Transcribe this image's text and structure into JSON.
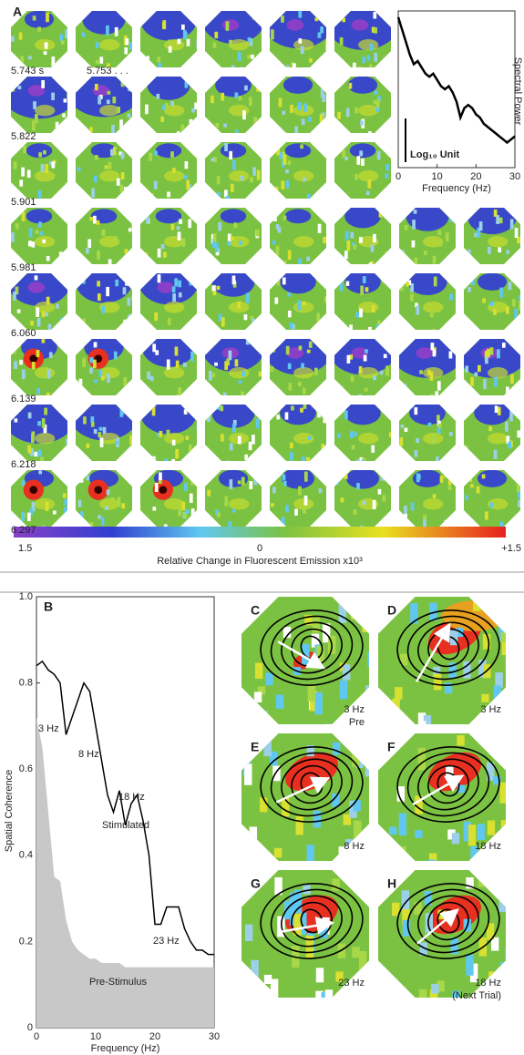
{
  "panel_a": {
    "label": "A",
    "time_labels": [
      "5.743 s",
      "5.753 . . .",
      "5.822",
      "5.901",
      "5.981",
      "6.060",
      "6.139",
      "6.218",
      "6.297"
    ]
  },
  "colorbar": {
    "min_label": "1.5",
    "mid_label": "0",
    "max_label": "+1.5",
    "title": "Relative Change in Fluorescent Emission x10³"
  },
  "chart_data": [
    {
      "type": "line",
      "x_label": "Frequency (Hz)",
      "y_label": "Spectral Power",
      "scale_bar_label": "Log₁₀ Unit",
      "x": [
        0,
        1,
        2,
        3,
        4,
        5,
        6,
        7,
        8,
        9,
        10,
        11,
        12,
        13,
        14,
        15,
        16,
        17,
        18,
        19,
        20,
        21,
        22,
        23,
        24,
        25,
        26,
        27,
        28,
        29,
        30
      ],
      "values": [
        4.8,
        4.4,
        4.0,
        3.6,
        3.3,
        3.4,
        3.2,
        3.0,
        2.9,
        3.0,
        2.8,
        2.6,
        2.5,
        2.6,
        2.4,
        2.1,
        1.6,
        1.9,
        2.0,
        1.9,
        1.7,
        1.6,
        1.4,
        1.3,
        1.2,
        1.1,
        1.0,
        0.9,
        0.8,
        0.9,
        1.0
      ],
      "color": "#000000",
      "xlim": [
        0,
        30
      ],
      "xticks": [
        0,
        10,
        20,
        30
      ],
      "ylim": [
        0,
        5
      ]
    },
    {
      "type": "line",
      "panel_label": "B",
      "x_label": "Frequency (Hz)",
      "y_label": "Spatial Coherence",
      "x": [
        0,
        1,
        2,
        3,
        4,
        5,
        6,
        7,
        8,
        9,
        10,
        11,
        12,
        13,
        14,
        15,
        16,
        17,
        18,
        19,
        20,
        21,
        22,
        23,
        24,
        25,
        26,
        27,
        28,
        29,
        30
      ],
      "series": [
        {
          "name": "Stimulated",
          "color": "#000000",
          "values": [
            0.84,
            0.85,
            0.83,
            0.82,
            0.8,
            0.68,
            0.72,
            0.76,
            0.8,
            0.78,
            0.7,
            0.62,
            0.54,
            0.5,
            0.55,
            0.47,
            0.52,
            0.54,
            0.48,
            0.4,
            0.24,
            0.24,
            0.28,
            0.28,
            0.28,
            0.23,
            0.2,
            0.18,
            0.18,
            0.17,
            0.17
          ]
        },
        {
          "name": "Pre-Stimulus",
          "color": "#c8c8c8",
          "fill": true,
          "values": [
            0.72,
            0.65,
            0.5,
            0.35,
            0.34,
            0.25,
            0.2,
            0.18,
            0.17,
            0.16,
            0.16,
            0.15,
            0.15,
            0.15,
            0.15,
            0.14,
            0.14,
            0.14,
            0.14,
            0.14,
            0.14,
            0.14,
            0.14,
            0.14,
            0.14,
            0.14,
            0.14,
            0.14,
            0.14,
            0.14,
            0.14
          ]
        }
      ],
      "annotations": [
        "3 Hz",
        "8 Hz",
        "18 Hz",
        "23 Hz"
      ],
      "xlim": [
        0,
        30
      ],
      "xticks": [
        0,
        10,
        20,
        30
      ],
      "ylim": [
        0,
        1
      ],
      "yticks": [
        0,
        0.2,
        0.4,
        0.6,
        0.8,
        {
          "value": 1,
          "label": "1.0"
        }
      ]
    }
  ],
  "maps": [
    {
      "label": "C",
      "caption": "3 Hz",
      "note": "Pre"
    },
    {
      "label": "D",
      "caption": "3 Hz"
    },
    {
      "label": "E",
      "caption": "8 Hz"
    },
    {
      "label": "F",
      "caption": "18 Hz"
    },
    {
      "label": "G",
      "caption": "23 Hz"
    },
    {
      "label": "H",
      "caption": "18 Hz",
      "note": "(Next Trial)"
    }
  ]
}
